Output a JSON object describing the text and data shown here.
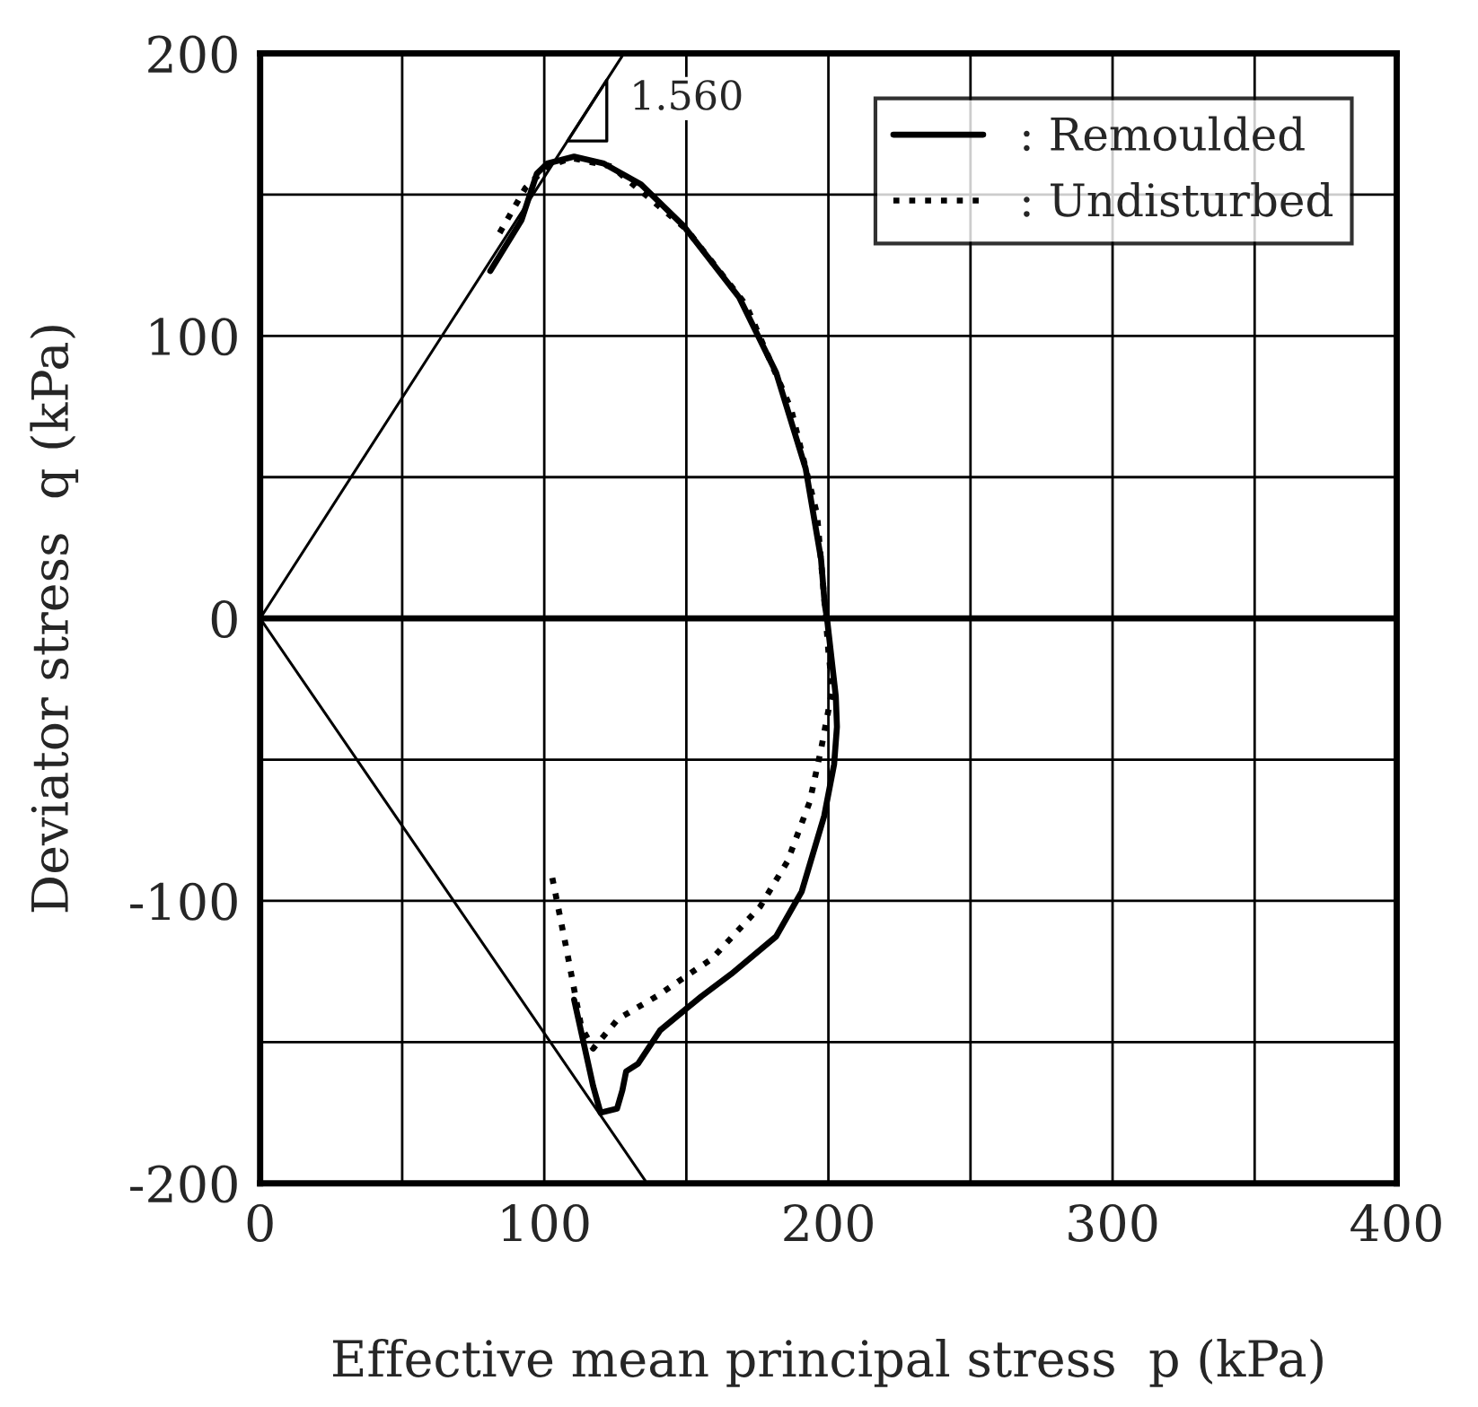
{
  "chart_data": {
    "type": "line",
    "xlabel": "Effective mean principal stress  p (kPa)",
    "ylabel": "Deviator stress  q (kPa)",
    "xlim": [
      0,
      400
    ],
    "ylim": [
      -200,
      200
    ],
    "xticks": [
      0,
      {
        "value": 50,
        "label": null
      },
      100,
      {
        "value": 150,
        "label": null
      },
      200,
      {
        "value": 250,
        "label": null
      },
      300,
      {
        "value": 350,
        "label": null
      },
      400
    ],
    "yticks": [
      {
        "value": -200,
        "label": "-200"
      },
      {
        "value": -150,
        "label": null
      },
      {
        "value": -100,
        "label": "-100"
      },
      {
        "value": -50,
        "label": null
      },
      0,
      {
        "value": 50,
        "label": null
      },
      100,
      {
        "value": 150,
        "label": null
      },
      200
    ],
    "grid": true,
    "legend": "top right",
    "ref_lines": [
      {
        "axis": "y",
        "value": 0,
        "color": "#000000"
      }
    ],
    "annotations": [
      "1.560"
    ],
    "series": [
      {
        "name": ": Remoulded",
        "color": "#000000",
        "line_style": "solid",
        "x": [
          81,
          92,
          97.4,
          101,
          110.5,
          121,
          134,
          149,
          168.6,
          181.6,
          192,
          197.4,
          198.7,
          199.5,
          202.6,
          203,
          202,
          198.5,
          190.6,
          181.6,
          165.8,
          155.3,
          140.8,
          133,
          128.8,
          127.5,
          125.6,
          119.8,
          117.2,
          110.5
        ],
        "values": [
          123,
          141,
          157.5,
          161,
          163.5,
          161,
          153.7,
          139,
          113.6,
          87,
          53,
          21,
          5,
          0,
          -27.6,
          -38.4,
          -51.7,
          -70,
          -96.7,
          -112.6,
          -125.9,
          -133.8,
          -145.8,
          -157.7,
          -160.4,
          -167,
          -173.6,
          -175,
          -165.6,
          -135
        ]
      },
      {
        "name": ": Undisturbed",
        "color": "#000000",
        "line_style": "dotted",
        "x": [
          84.3,
          93.4,
          101,
          109.6,
          123.7,
          150,
          171,
          186.9,
          196,
          198.7,
          200,
          201.4,
          197.4,
          193.4,
          185.6,
          176,
          159,
          139.5,
          126,
          117.2,
          113,
          108,
          102.7
        ],
        "values": [
          136.5,
          152.4,
          160,
          163,
          160,
          137.8,
          111,
          74,
          36.8,
          5,
          -11.8,
          -25,
          -46.4,
          -65,
          -86,
          -102,
          -120.5,
          -133.8,
          -141.8,
          -152.3,
          -144.5,
          -118,
          -91.2
        ]
      },
      {
        "color": "#000000",
        "line_style": "solid",
        "x": [
          0,
          128
        ],
        "values": [
          0,
          200
        ]
      },
      {
        "color": "#000000",
        "line_style": "solid",
        "x": [
          0,
          135.5
        ],
        "values": [
          0,
          -199
        ]
      }
    ]
  }
}
